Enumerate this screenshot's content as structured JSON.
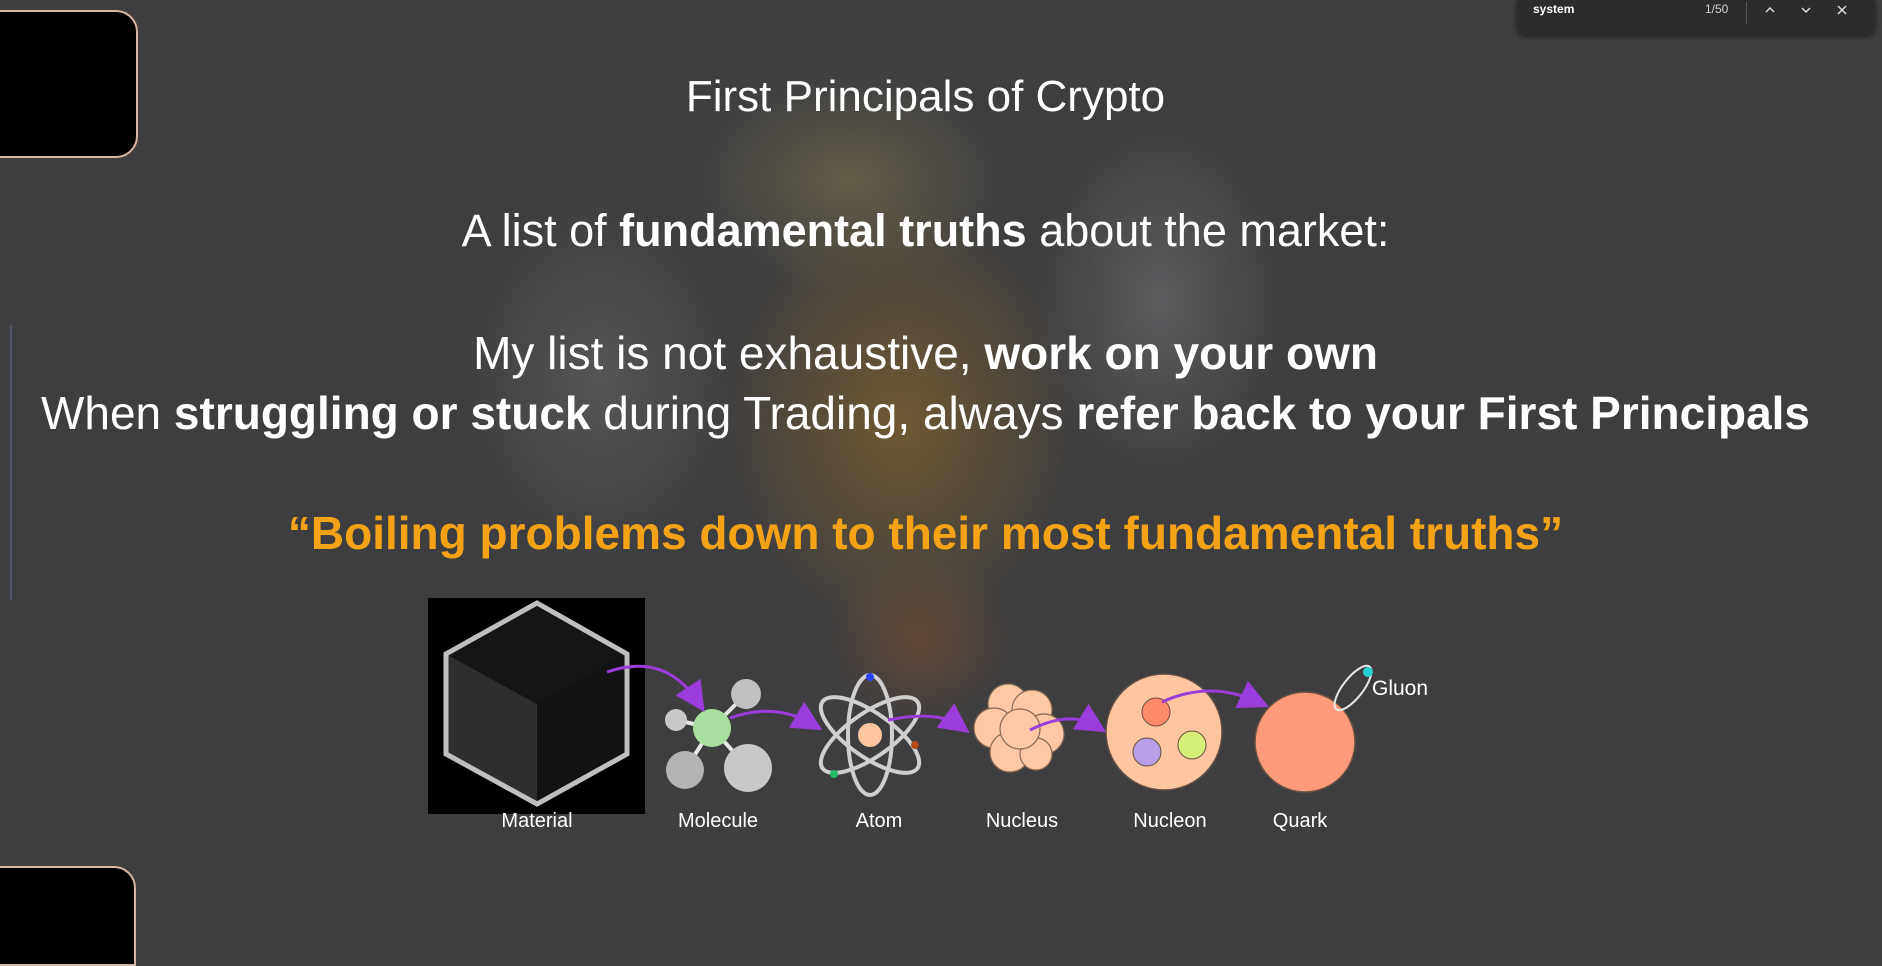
{
  "find_bar": {
    "query": "system",
    "match_counter": "1/50"
  },
  "slide": {
    "title": "First Principals of Crypto",
    "subtitle": {
      "pre": "A list of ",
      "bold": "fundamental truths",
      "post": " about the market:"
    },
    "line3": {
      "pre": "My list is not exhaustive, ",
      "bold": "work on your own"
    },
    "line4": {
      "pre": "When ",
      "bold1": "struggling or stuck",
      "mid": " during Trading, always ",
      "bold2": "refer back to your First Principals"
    },
    "quote": "“Boiling problems down to their most fundamental truths”",
    "quote_color": "#f5a316",
    "diagram": {
      "labels": [
        "Material",
        "Molecule",
        "Atom",
        "Nucleus",
        "Nucleon",
        "Quark"
      ],
      "gluon_label": "Gluon"
    }
  }
}
